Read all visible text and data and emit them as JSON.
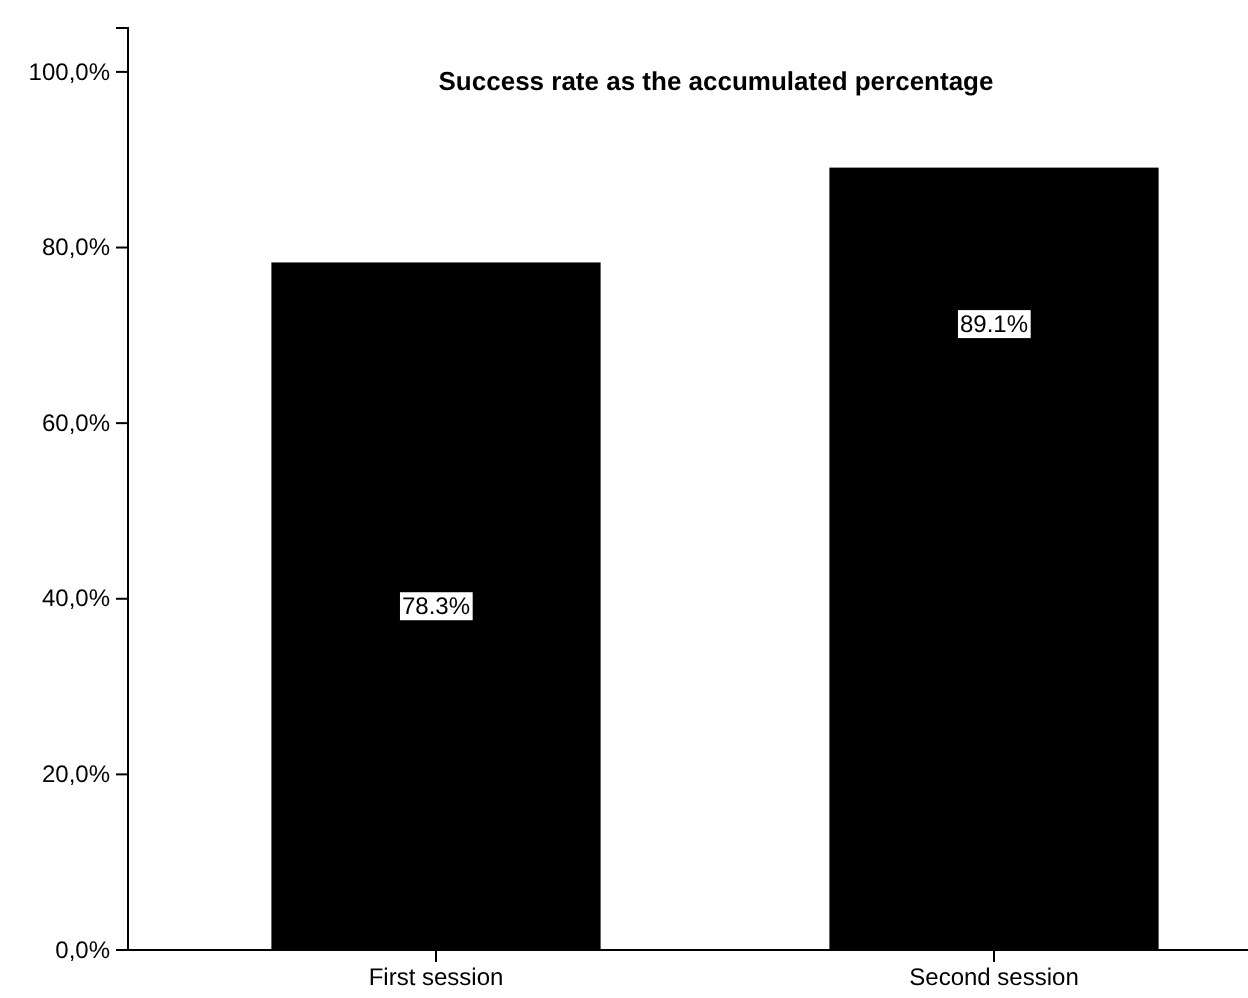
{
  "chart_data": {
    "type": "bar",
    "title": "Success rate as the accumulated percentage",
    "categories": [
      "First session",
      "Second session"
    ],
    "values": [
      78.3,
      89.1
    ],
    "color": "#000000",
    "value_labels": [
      "78.3%",
      "89.1%"
    ],
    "ylim": [
      0,
      105
    ],
    "yticks": [
      {
        "value": 0,
        "label": "0,0%"
      },
      {
        "value": 20,
        "label": "20,0%"
      },
      {
        "value": 40,
        "label": "40,0%"
      },
      {
        "value": 60,
        "label": "60,0%"
      },
      {
        "value": 80,
        "label": "80,0%"
      },
      {
        "value": 100,
        "label": "100,0%"
      }
    ],
    "grid": false
  }
}
